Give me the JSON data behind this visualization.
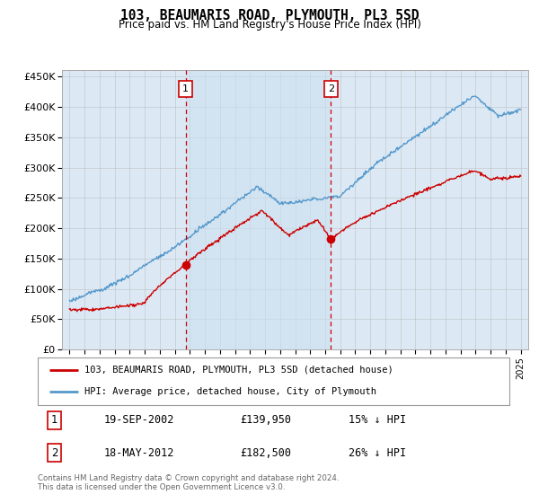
{
  "title": "103, BEAUMARIS ROAD, PLYMOUTH, PL3 5SD",
  "subtitle": "Price paid vs. HM Land Registry's House Price Index (HPI)",
  "plot_bg_color": "#dce9f5",
  "ylim": [
    0,
    460000
  ],
  "yticks": [
    0,
    50000,
    100000,
    150000,
    200000,
    250000,
    300000,
    350000,
    400000,
    450000
  ],
  "ytick_labels": [
    "£0",
    "£50K",
    "£100K",
    "£150K",
    "£200K",
    "£250K",
    "£300K",
    "£350K",
    "£400K",
    "£450K"
  ],
  "marker1": {
    "year": 2002.72,
    "value": 139950,
    "label": "1",
    "date": "19-SEP-2002",
    "price": "£139,950",
    "hpi": "15% ↓ HPI"
  },
  "marker2": {
    "year": 2012.38,
    "value": 182500,
    "label": "2",
    "date": "18-MAY-2012",
    "price": "£182,500",
    "hpi": "26% ↓ HPI"
  },
  "legend_line1": "103, BEAUMARIS ROAD, PLYMOUTH, PL3 5SD (detached house)",
  "legend_line2": "HPI: Average price, detached house, City of Plymouth",
  "footer": "Contains HM Land Registry data © Crown copyright and database right 2024.\nThis data is licensed under the Open Government Licence v3.0.",
  "red_color": "#cc0000",
  "blue_color": "#5599cc",
  "shade_color": "#cce0f0",
  "vline_color": "#cc0000",
  "grid_color": "#bbbbbb"
}
